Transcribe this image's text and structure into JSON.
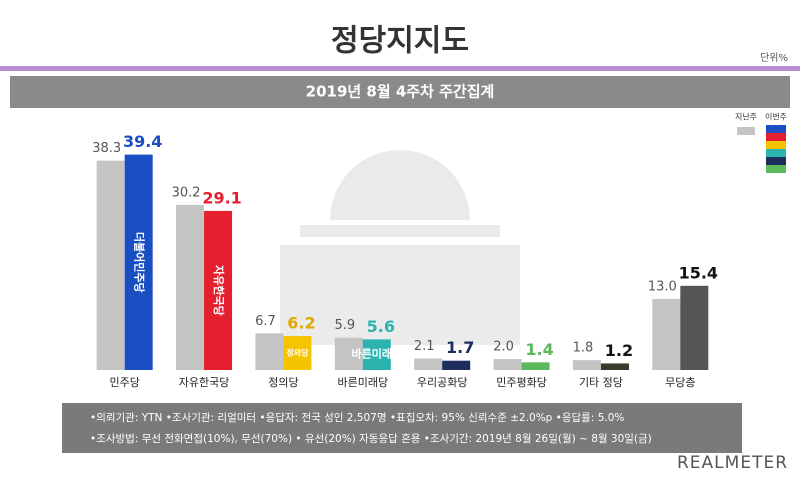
{
  "chart_data": {
    "type": "bar",
    "title": "정당지지도",
    "unit": "단위%",
    "subtitle": "2019년 8월 4주차 주간집계",
    "categories": [
      "민주당",
      "자유한국당",
      "정의당",
      "바른미래당",
      "우리공화당",
      "민주평화당",
      "기타 정당",
      "무당층"
    ],
    "series": [
      {
        "name": "지난주",
        "color": "#c4c4c4",
        "values": [
          38.3,
          30.2,
          6.7,
          5.9,
          2.1,
          2.0,
          1.8,
          13.0
        ],
        "value_labels": [
          "38.3",
          "30.2",
          "6.7",
          "5.9",
          "2.1",
          "2.0",
          "1.8",
          "13.0"
        ]
      },
      {
        "name": "이번주",
        "colors": [
          "#1a4fc4",
          "#e4202f",
          "#f5c400",
          "#2bb3b0",
          "#1c2d5e",
          "#5cb85c",
          "#3a3a2a",
          "#555555"
        ],
        "label_colors": [
          "#1a4fc4",
          "#e4202f",
          "#e0a800",
          "#2bb3b0",
          "#1c2d5e",
          "#5cb85c",
          "#111111",
          "#111111"
        ],
        "values": [
          39.4,
          29.1,
          6.2,
          5.6,
          1.7,
          1.4,
          1.2,
          15.4
        ]
      }
    ],
    "logos": [
      "더불어민주당",
      "자유한국당",
      "정의당",
      "바른미래당",
      null,
      null,
      null,
      null
    ],
    "ylim": [
      0,
      45
    ],
    "notes": [
      "•의뢰기관: YTN  •조사기관: 리얼미터  •응답자: 전국 성인 2,507명  •표집오차: 95% 신뢰수준 ±2.0%p  •응답률: 5.0%",
      "•조사방법: 무선 전화면접(10%), 무선(70%) • 유선(20%) 자동응답 혼용   •조사기간: 2019년 8월 26일(월) ~ 8월 30일(금)"
    ],
    "brand": "REALMETER"
  }
}
